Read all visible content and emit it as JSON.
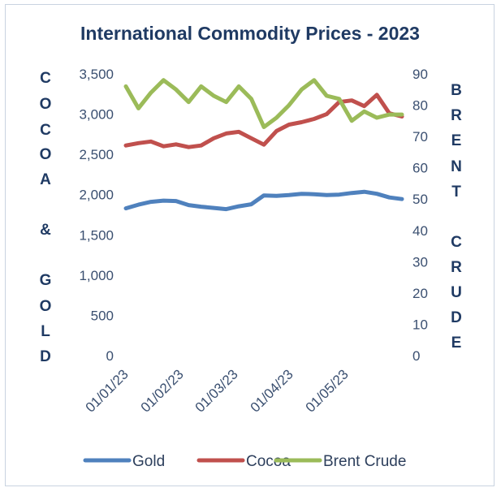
{
  "chart_data": {
    "type": "line",
    "title": "International Commodity Prices - 2023",
    "y_left_label": "COCOA & GOLD",
    "y_right_label": "BRENT CRUDE",
    "y_left": {
      "ylim": [
        0,
        3500
      ],
      "ticks": [
        "0",
        "500",
        "1,000",
        "1,500",
        "2,000",
        "2,500",
        "3,000",
        "3,500"
      ]
    },
    "y_right": {
      "ylim": [
        0,
        90
      ],
      "ticks": [
        "0",
        "10",
        "20",
        "30",
        "40",
        "50",
        "60",
        "70",
        "80",
        "90"
      ]
    },
    "x_ticks": [
      "01/01/23",
      "01/02/23",
      "01/03/23",
      "01/04/23",
      "01/05/23"
    ],
    "grid": false,
    "legend_position": "bottom",
    "x_dates": [
      "01/01/23",
      "08/01/23",
      "15/01/23",
      "22/01/23",
      "29/01/23",
      "05/02/23",
      "12/02/23",
      "19/02/23",
      "26/02/23",
      "05/03/23",
      "12/03/23",
      "19/03/23",
      "26/03/23",
      "02/04/23",
      "09/04/23",
      "16/04/23",
      "23/04/23",
      "30/04/23",
      "07/05/23",
      "14/05/23",
      "21/05/23",
      "28/05/23",
      "04/06/23"
    ],
    "series": [
      {
        "name": "Gold",
        "axis": "left",
        "color": "#4f81bd",
        "values": [
          1830,
          1875,
          1910,
          1925,
          1920,
          1870,
          1850,
          1835,
          1820,
          1855,
          1880,
          1990,
          1985,
          1995,
          2010,
          2005,
          1995,
          2000,
          2020,
          2035,
          2010,
          1965,
          1945
        ]
      },
      {
        "name": "Cocoa",
        "axis": "left",
        "color": "#c0504d",
        "values": [
          2610,
          2640,
          2660,
          2600,
          2625,
          2590,
          2610,
          2700,
          2760,
          2780,
          2700,
          2620,
          2790,
          2870,
          2900,
          2940,
          3000,
          3150,
          3170,
          3100,
          3240,
          3010,
          2970
        ]
      },
      {
        "name": "Brent Crude",
        "axis": "right",
        "color": "#9bbb59",
        "values": [
          86,
          79,
          84,
          88,
          85,
          81,
          86,
          83,
          81,
          86,
          82,
          73,
          76,
          80,
          85,
          88,
          83,
          82,
          75,
          78,
          76,
          77,
          77
        ]
      }
    ]
  }
}
